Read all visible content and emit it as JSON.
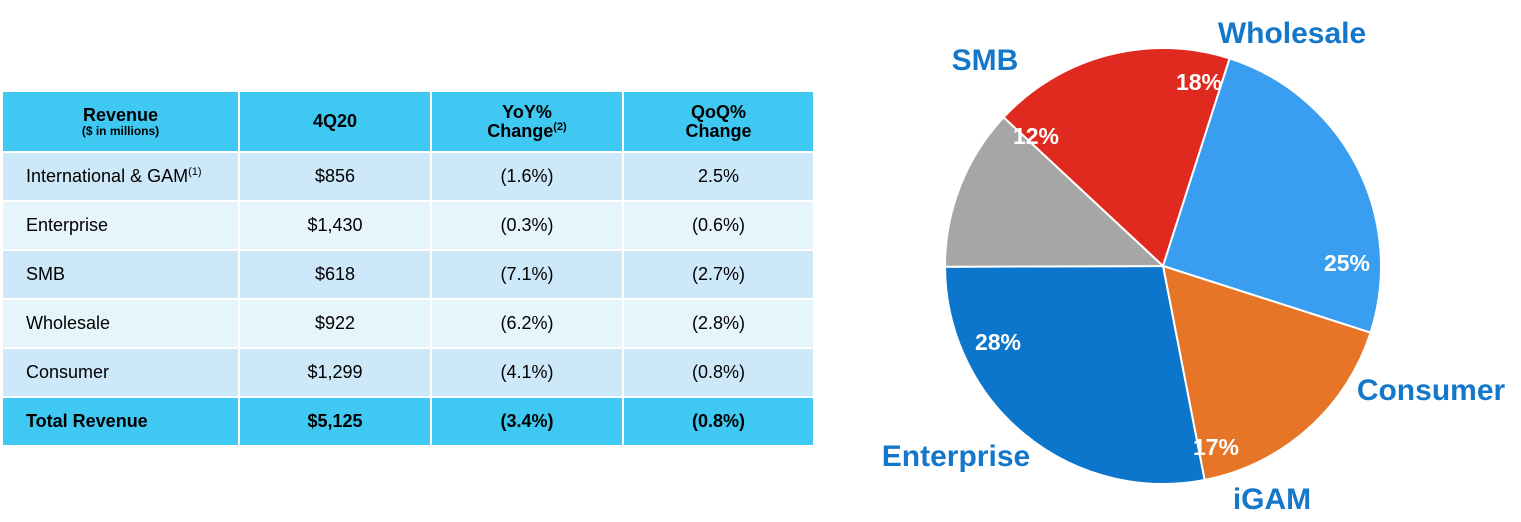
{
  "table": {
    "headers": [
      {
        "line1": "Revenue",
        "line2": "($ in millions)"
      },
      {
        "line1": "4Q20"
      },
      {
        "line1": "YoY%",
        "line2": "Change",
        "sup": "(2)"
      },
      {
        "line1": "QoQ%",
        "line2": "Change"
      }
    ],
    "rows": [
      {
        "label": "International & GAM",
        "sup": "(1)",
        "value": "$856",
        "yoy": "(1.6%)",
        "qoq": "2.5%"
      },
      {
        "label": "Enterprise",
        "value": "$1,430",
        "yoy": "(0.3%)",
        "qoq": "(0.6%)"
      },
      {
        "label": "SMB",
        "value": "$618",
        "yoy": "(7.1%)",
        "qoq": "(2.7%)"
      },
      {
        "label": "Wholesale",
        "value": "$922",
        "yoy": "(6.2%)",
        "qoq": "(2.8%)"
      },
      {
        "label": "Consumer",
        "value": "$1,299",
        "yoy": "(4.1%)",
        "qoq": "(0.8%)"
      }
    ],
    "total": {
      "label": "Total Revenue",
      "value": "$5,125",
      "yoy": "(3.4%)",
      "qoq": "(0.8%)"
    },
    "colors": {
      "header": "#3ec8f2",
      "row_odd": "#cde8f8",
      "row_even": "#e6f4fc"
    }
  },
  "chart_data": {
    "type": "pie",
    "slices": [
      {
        "label": "Wholesale",
        "value": 18,
        "pct_label": "18%",
        "color": "#e0291f"
      },
      {
        "label": "Consumer",
        "value": 25,
        "pct_label": "25%",
        "color": "#3a9ef0"
      },
      {
        "label": "iGAM",
        "value": 17,
        "pct_label": "17%",
        "color": "#e67527"
      },
      {
        "label": "Enterprise",
        "value": 28,
        "pct_label": "28%",
        "color": "#0c76cc"
      },
      {
        "label": "SMB",
        "value": 12,
        "pct_label": "12%",
        "color": "#a6a6a6"
      }
    ],
    "label_color": "#1477c9",
    "grid": false,
    "legend": "none"
  }
}
